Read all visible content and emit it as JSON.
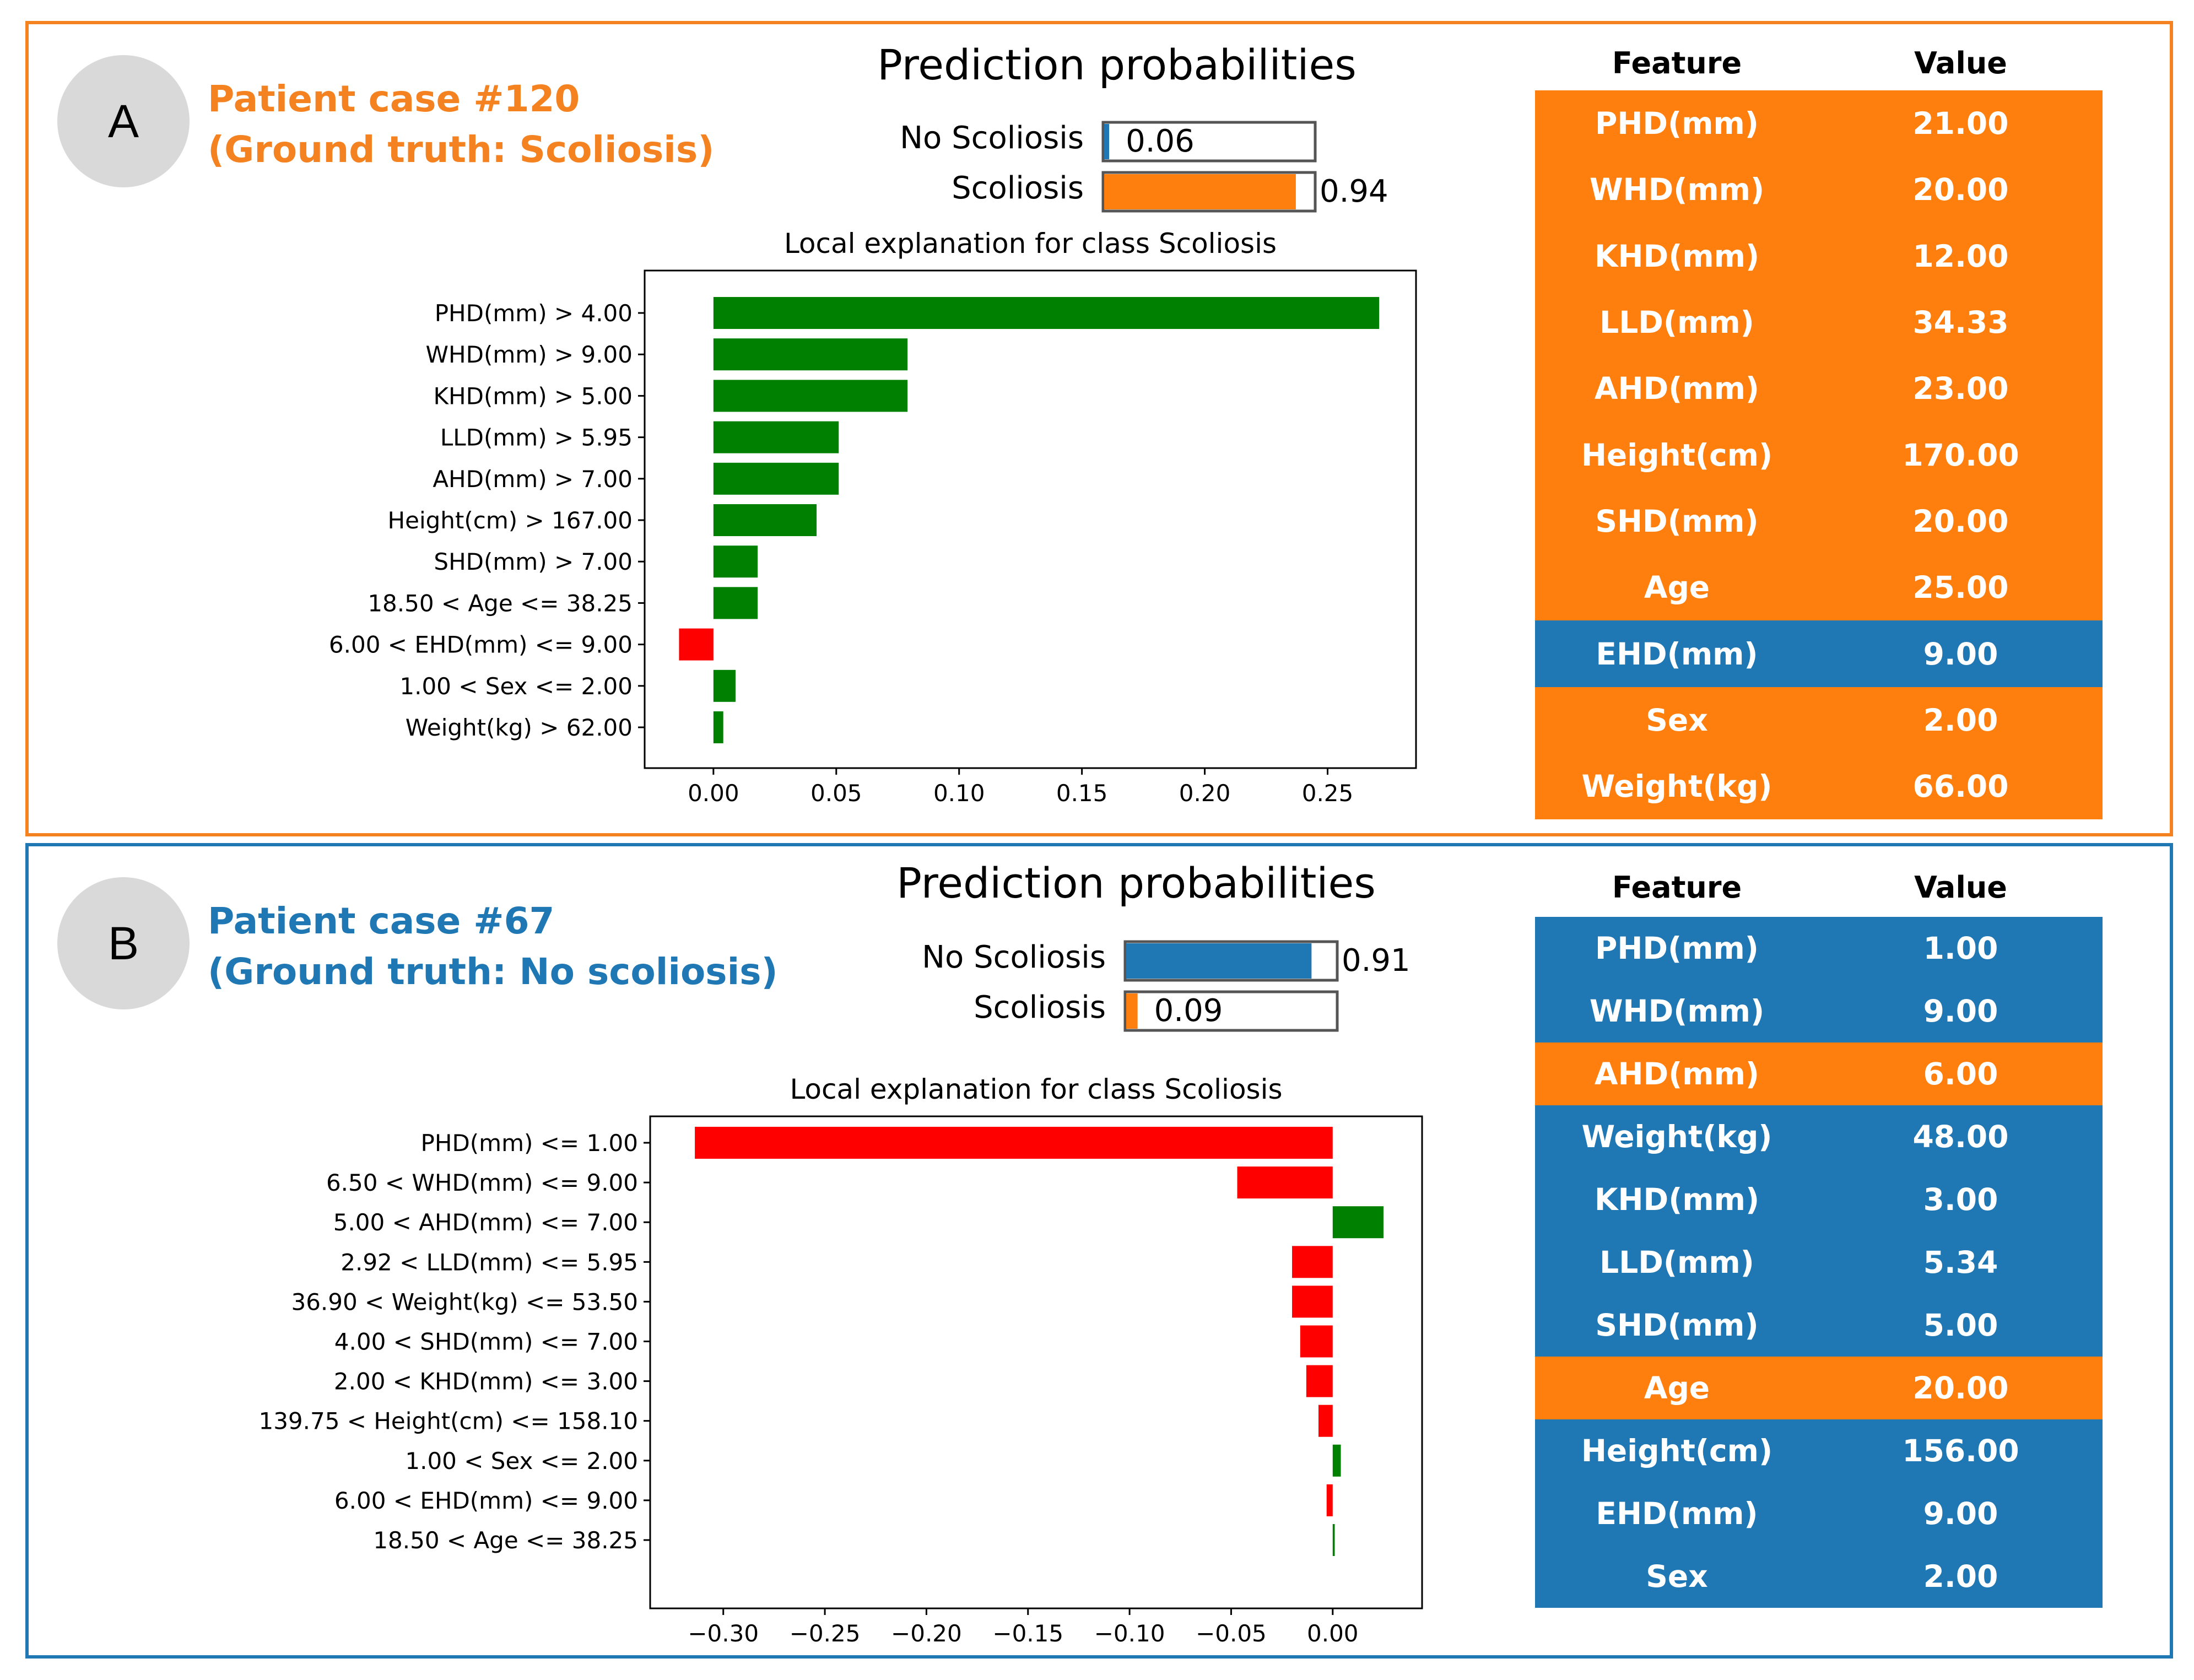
{
  "colors": {
    "orange": "#ff7f0e",
    "blue": "#1f77b4",
    "green": "#008000",
    "red": "#ff0000",
    "frame_a": "#f58220",
    "frame_b": "#1f77b4"
  },
  "panels": [
    {
      "badge": "A",
      "case_title": "Patient case #120",
      "ground_truth": "(Ground truth: Scoliosis)",
      "title_color": "#f58220",
      "table": {
        "header": {
          "feature": "Feature",
          "value": "Value"
        },
        "rows": [
          {
            "feature": "PHD(mm)",
            "value": "21.00",
            "color": "orange"
          },
          {
            "feature": "WHD(mm)",
            "value": "20.00",
            "color": "orange"
          },
          {
            "feature": "KHD(mm)",
            "value": "12.00",
            "color": "orange"
          },
          {
            "feature": "LLD(mm)",
            "value": "34.33",
            "color": "orange"
          },
          {
            "feature": "AHD(mm)",
            "value": "23.00",
            "color": "orange"
          },
          {
            "feature": "Height(cm)",
            "value": "170.00",
            "color": "orange"
          },
          {
            "feature": "SHD(mm)",
            "value": "20.00",
            "color": "orange"
          },
          {
            "feature": "Age",
            "value": "25.00",
            "color": "orange"
          },
          {
            "feature": "EHD(mm)",
            "value": "9.00",
            "color": "blue"
          },
          {
            "feature": "Sex",
            "value": "2.00",
            "color": "orange"
          },
          {
            "feature": "Weight(kg)",
            "value": "66.00",
            "color": "orange"
          }
        ]
      }
    },
    {
      "badge": "B",
      "case_title": "Patient case #67",
      "ground_truth": "(Ground truth: No scoliosis)",
      "title_color": "#1f77b4",
      "table": {
        "header": {
          "feature": "Feature",
          "value": "Value"
        },
        "rows": [
          {
            "feature": "PHD(mm)",
            "value": "1.00",
            "color": "blue"
          },
          {
            "feature": "WHD(mm)",
            "value": "9.00",
            "color": "blue"
          },
          {
            "feature": "AHD(mm)",
            "value": "6.00",
            "color": "orange"
          },
          {
            "feature": "Weight(kg)",
            "value": "48.00",
            "color": "blue"
          },
          {
            "feature": "KHD(mm)",
            "value": "3.00",
            "color": "blue"
          },
          {
            "feature": "LLD(mm)",
            "value": "5.34",
            "color": "blue"
          },
          {
            "feature": "SHD(mm)",
            "value": "5.00",
            "color": "blue"
          },
          {
            "feature": "Age",
            "value": "20.00",
            "color": "orange"
          },
          {
            "feature": "Height(cm)",
            "value": "156.00",
            "color": "blue"
          },
          {
            "feature": "EHD(mm)",
            "value": "9.00",
            "color": "blue"
          },
          {
            "feature": "Sex",
            "value": "2.00",
            "color": "blue"
          }
        ]
      }
    }
  ],
  "chart_data": [
    {
      "type": "bar",
      "orientation": "horizontal",
      "panel": "A",
      "title": "Local explanation for class Scoliosis",
      "categories": [
        "PHD(mm) > 4.00",
        "WHD(mm) > 9.00",
        "KHD(mm) > 5.00",
        "LLD(mm) > 5.95",
        "AHD(mm) > 7.00",
        "Height(cm) > 167.00",
        "SHD(mm) > 7.00",
        "18.50 < Age <= 38.25",
        "6.00 < EHD(mm) <= 9.00",
        "1.00 < Sex <= 2.00",
        "Weight(kg) > 62.00"
      ],
      "values": [
        0.271,
        0.079,
        0.079,
        0.051,
        0.051,
        0.042,
        0.018,
        0.018,
        -0.014,
        0.009,
        0.004
      ],
      "xlim": [
        -0.028,
        0.286
      ],
      "xticks": [
        "0.00",
        "0.05",
        "0.10",
        "0.15",
        "0.20",
        "0.25"
      ],
      "xtick_values": [
        0.0,
        0.05,
        0.1,
        0.15,
        0.2,
        0.25
      ],
      "prediction": {
        "title": "Prediction probabilities",
        "classes": [
          "No Scoliosis",
          "Scoliosis"
        ],
        "probabilities": [
          0.06,
          0.94
        ],
        "labels": [
          "0.06",
          "0.94"
        ]
      }
    },
    {
      "type": "bar",
      "orientation": "horizontal",
      "panel": "B",
      "title": "Local explanation for class Scoliosis",
      "categories": [
        "PHD(mm) <= 1.00",
        "6.50 < WHD(mm) <= 9.00",
        "5.00 < AHD(mm) <= 7.00",
        "2.92 < LLD(mm) <= 5.95",
        "36.90 < Weight(kg) <= 53.50",
        "4.00 < SHD(mm) <= 7.00",
        "2.00 < KHD(mm) <= 3.00",
        "139.75 < Height(cm) <= 158.10",
        "1.00 < Sex <= 2.00",
        "6.00 < EHD(mm) <= 9.00",
        "18.50 < Age <= 38.25"
      ],
      "values": [
        -0.314,
        -0.047,
        0.025,
        -0.02,
        -0.02,
        -0.016,
        -0.013,
        -0.007,
        0.004,
        -0.003,
        0.001
      ],
      "xlim": [
        -0.336,
        0.044
      ],
      "xticks": [
        "−0.30",
        "−0.25",
        "−0.20",
        "−0.15",
        "−0.10",
        "−0.05",
        "0.00"
      ],
      "xtick_values": [
        -0.3,
        -0.25,
        -0.2,
        -0.15,
        -0.1,
        -0.05,
        0.0
      ],
      "prediction": {
        "title": "Prediction probabilities",
        "classes": [
          "No Scoliosis",
          "Scoliosis"
        ],
        "probabilities": [
          0.91,
          0.09
        ],
        "labels": [
          "0.91",
          "0.09"
        ]
      }
    }
  ]
}
